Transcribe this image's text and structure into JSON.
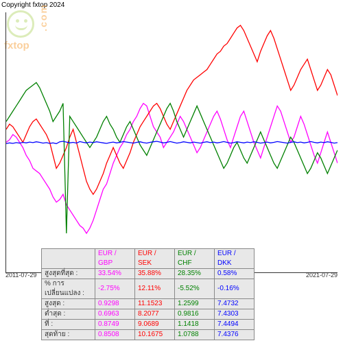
{
  "copyright": "Copyright fxtop 2024",
  "logo": {
    "brand": "fxtop",
    "side": ".com"
  },
  "chart": {
    "type": "line",
    "x_start": "2011-07-29",
    "x_end": "2021-07-29",
    "background_color": "#ffffff",
    "axis_color": "#333333",
    "baseline_y": 0.5,
    "series": [
      {
        "name": "EUR / GBP",
        "color": "#ff00ff",
        "points": [
          0.5,
          0.49,
          0.47,
          0.48,
          0.5,
          0.52,
          0.55,
          0.57,
          0.6,
          0.61,
          0.62,
          0.64,
          0.66,
          0.68,
          0.71,
          0.73,
          0.72,
          0.7,
          0.74,
          0.76,
          0.78,
          0.8,
          0.82,
          0.83,
          0.85,
          0.83,
          0.8,
          0.76,
          0.72,
          0.68,
          0.66,
          0.62,
          0.58,
          0.55,
          0.52,
          0.5,
          0.47,
          0.45,
          0.42,
          0.4,
          0.37,
          0.35,
          0.36,
          0.4,
          0.44,
          0.46,
          0.48,
          0.52,
          0.5,
          0.48,
          0.46,
          0.43,
          0.4,
          0.42,
          0.45,
          0.48,
          0.51,
          0.54,
          0.52,
          0.49,
          0.46,
          0.43,
          0.4,
          0.38,
          0.41,
          0.45,
          0.49,
          0.52,
          0.48,
          0.44,
          0.4,
          0.38,
          0.42,
          0.46,
          0.5,
          0.53,
          0.56,
          0.52,
          0.48,
          0.44,
          0.4,
          0.36,
          0.38,
          0.42,
          0.46,
          0.5,
          0.48,
          0.44,
          0.4,
          0.43,
          0.47,
          0.51,
          0.55,
          0.58,
          0.54,
          0.5,
          0.46,
          0.5,
          0.54,
          0.58
        ]
      },
      {
        "name": "EUR / SEK",
        "color": "#ff0000",
        "points": [
          0.45,
          0.43,
          0.44,
          0.46,
          0.48,
          0.5,
          0.47,
          0.44,
          0.42,
          0.41,
          0.43,
          0.45,
          0.47,
          0.5,
          0.55,
          0.6,
          0.58,
          0.55,
          0.52,
          0.48,
          0.45,
          0.5,
          0.55,
          0.6,
          0.65,
          0.68,
          0.7,
          0.68,
          0.65,
          0.62,
          0.58,
          0.55,
          0.52,
          0.55,
          0.58,
          0.6,
          0.57,
          0.54,
          0.5,
          0.47,
          0.44,
          0.42,
          0.4,
          0.38,
          0.36,
          0.35,
          0.37,
          0.4,
          0.43,
          0.45,
          0.42,
          0.39,
          0.36,
          0.33,
          0.3,
          0.28,
          0.26,
          0.25,
          0.24,
          0.23,
          0.22,
          0.2,
          0.18,
          0.16,
          0.15,
          0.13,
          0.12,
          0.1,
          0.08,
          0.06,
          0.05,
          0.07,
          0.1,
          0.13,
          0.16,
          0.19,
          0.15,
          0.12,
          0.09,
          0.07,
          0.1,
          0.14,
          0.18,
          0.22,
          0.26,
          0.3,
          0.28,
          0.25,
          0.22,
          0.2,
          0.18,
          0.22,
          0.26,
          0.3,
          0.28,
          0.25,
          0.22,
          0.24,
          0.28,
          0.32
        ]
      },
      {
        "name": "EUR / CHF",
        "color": "#008000",
        "points": [
          0.42,
          0.4,
          0.38,
          0.36,
          0.34,
          0.32,
          0.3,
          0.29,
          0.28,
          0.27,
          0.29,
          0.32,
          0.35,
          0.38,
          0.42,
          0.4,
          0.38,
          0.35,
          0.85,
          0.4,
          0.42,
          0.44,
          0.46,
          0.48,
          0.5,
          0.52,
          0.5,
          0.48,
          0.45,
          0.42,
          0.4,
          0.43,
          0.45,
          0.48,
          0.5,
          0.47,
          0.44,
          0.42,
          0.45,
          0.48,
          0.51,
          0.53,
          0.55,
          0.52,
          0.49,
          0.46,
          0.43,
          0.4,
          0.37,
          0.35,
          0.38,
          0.42,
          0.45,
          0.48,
          0.45,
          0.42,
          0.39,
          0.36,
          0.39,
          0.42,
          0.45,
          0.48,
          0.51,
          0.54,
          0.57,
          0.6,
          0.58,
          0.55,
          0.52,
          0.5,
          0.53,
          0.56,
          0.58,
          0.55,
          0.52,
          0.49,
          0.46,
          0.49,
          0.52,
          0.55,
          0.58,
          0.6,
          0.57,
          0.54,
          0.51,
          0.48,
          0.5,
          0.53,
          0.56,
          0.59,
          0.62,
          0.6,
          0.57,
          0.54,
          0.56,
          0.59,
          0.62,
          0.59,
          0.56,
          0.53
        ]
      },
      {
        "name": "EUR / DKK",
        "color": "#0000ff",
        "points": [
          0.505,
          0.502,
          0.504,
          0.501,
          0.503,
          0.5,
          0.502,
          0.499,
          0.501,
          0.498,
          0.5,
          0.503,
          0.501,
          0.504,
          0.502,
          0.505,
          0.498,
          0.496,
          0.499,
          0.502,
          0.5,
          0.503,
          0.497,
          0.5,
          0.502,
          0.499,
          0.501,
          0.498,
          0.5,
          0.502,
          0.504,
          0.501,
          0.499,
          0.502,
          0.5,
          0.497,
          0.499,
          0.501,
          0.503,
          0.5,
          0.498,
          0.501,
          0.503,
          0.5,
          0.498,
          0.496,
          0.499,
          0.502,
          0.5,
          0.497,
          0.5,
          0.503,
          0.501,
          0.498,
          0.5,
          0.502,
          0.499,
          0.501,
          0.503,
          0.5,
          0.498,
          0.501,
          0.499,
          0.502,
          0.5,
          0.497,
          0.5,
          0.503,
          0.501,
          0.498,
          0.5,
          0.502,
          0.499,
          0.501,
          0.498,
          0.5,
          0.503,
          0.501,
          0.499,
          0.502,
          0.5,
          0.497,
          0.499,
          0.501,
          0.503,
          0.5,
          0.498,
          0.501,
          0.499,
          0.502,
          0.5,
          0.497,
          0.5,
          0.502,
          0.499,
          0.501,
          0.498,
          0.5,
          0.503,
          0.501
        ]
      }
    ]
  },
  "table": {
    "row_labels": [
      "สูงสุดที่สุด :",
      "% การเปลี่ยนแปลง :",
      "สูงสุด :",
      "ต่ำสุด :",
      "ที่ :",
      "สุดท้าย :"
    ],
    "columns": [
      {
        "header": "EUR / GBP",
        "color": "#ff00ff",
        "values": [
          "33.54%",
          "-2.75%",
          "0.9298",
          "0.6963",
          "0.8749",
          "0.8508"
        ]
      },
      {
        "header": "EUR / SEK",
        "color": "#ff0000",
        "values": [
          "35.88%",
          "12.11%",
          "11.1523",
          "8.2077",
          "9.0689",
          "10.1675"
        ]
      },
      {
        "header": "EUR / CHF",
        "color": "#008000",
        "values": [
          "28.35%",
          "-5.52%",
          "1.2599",
          "0.9816",
          "1.1418",
          "1.0788"
        ]
      },
      {
        "header": "EUR / DKK",
        "color": "#0000ff",
        "values": [
          "0.58%",
          "-0.16%",
          "7.4732",
          "7.4303",
          "7.4494",
          "7.4376"
        ]
      }
    ]
  }
}
